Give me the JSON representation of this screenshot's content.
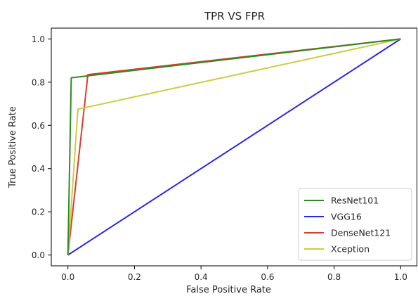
{
  "chart_data": {
    "type": "line",
    "title": "TPR VS FPR",
    "xlabel": "False Positive Rate",
    "ylabel": "True Positive Rate",
    "xlim": [
      -0.05,
      1.05
    ],
    "ylim": [
      -0.05,
      1.05
    ],
    "xticks": [
      "0.0",
      "0.2",
      "0.4",
      "0.6",
      "0.8",
      "1.0"
    ],
    "yticks": [
      "0.0",
      "0.2",
      "0.4",
      "0.6",
      "0.8",
      "1.0"
    ],
    "grid": false,
    "legend_position": "bottom-right",
    "series": [
      {
        "name": "ResNet101",
        "color": "#2e8b22",
        "x": [
          0.0,
          0.01,
          1.0
        ],
        "y": [
          0.0,
          0.82,
          1.0
        ]
      },
      {
        "name": "VGG16",
        "color": "#2929e6",
        "x": [
          0.0,
          1.0
        ],
        "y": [
          0.0,
          1.0
        ]
      },
      {
        "name": "DenseNet121",
        "color": "#e03a2c",
        "x": [
          0.0,
          0.06,
          1.0
        ],
        "y": [
          0.0,
          0.835,
          1.0
        ]
      },
      {
        "name": "Xception",
        "color": "#cccc44",
        "x": [
          0.0,
          0.03,
          1.0
        ],
        "y": [
          0.0,
          0.675,
          1.0
        ]
      }
    ]
  }
}
